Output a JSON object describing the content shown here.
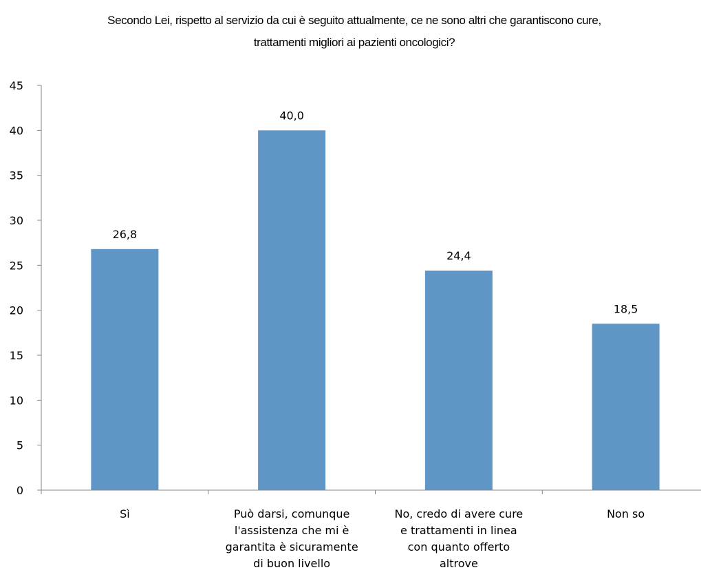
{
  "chart_data": {
    "type": "bar",
    "title_lines": [
      "Secondo Lei, rispetto al servizio da cui è seguito attualmente, ce ne sono altri che garantiscono cure,",
      "trattamenti migliori ai pazienti oncologici?"
    ],
    "categories": [
      "Sì",
      "Può darsi, comunque l'assistenza che mi è garantita è sicuramente di buon livello",
      "No, credo di avere cure e trattamenti  in linea con quanto offerto altrove",
      "Non so"
    ],
    "category_lines": [
      [
        "Sì"
      ],
      [
        "Può darsi, comunque",
        "l'assistenza che mi è",
        "garantita è sicuramente",
        "di buon livello"
      ],
      [
        "No, credo di avere cure",
        "e trattamenti  in linea",
        "con quanto offerto",
        "altrove"
      ],
      [
        "Non so"
      ]
    ],
    "values": [
      26.8,
      40.0,
      24.4,
      18.5
    ],
    "data_labels": [
      "26,8",
      "40,0",
      "24,4",
      "18,5"
    ],
    "y_ticks": [
      "0",
      "5",
      "10",
      "15",
      "20",
      "25",
      "30",
      "35",
      "40",
      "45"
    ],
    "ylim": [
      0,
      45
    ],
    "xlabel": "",
    "ylabel": "",
    "grid": false,
    "legend": "none",
    "bar_color": "#6096C6",
    "axis_color": "#868686"
  }
}
